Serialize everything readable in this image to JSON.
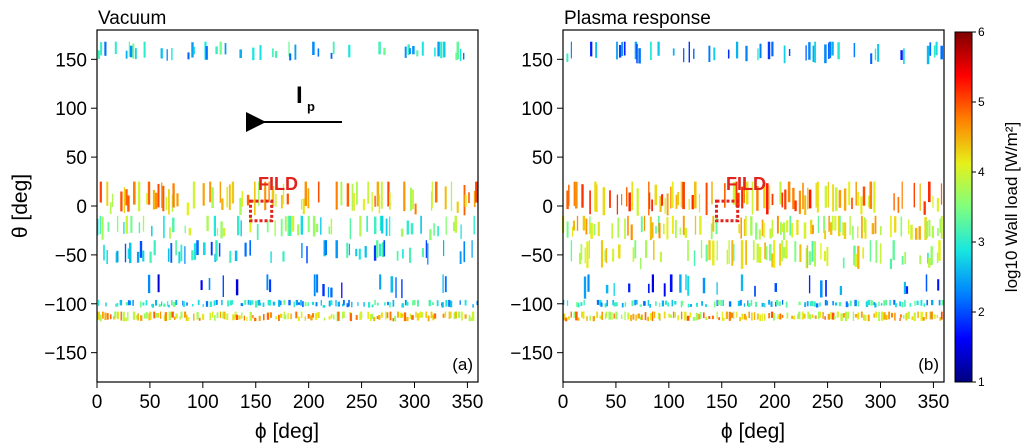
{
  "colors": {
    "fild_box": "#e0231c",
    "colormap": [
      "#00007f",
      "#0000ff",
      "#0080ff",
      "#17e6e0",
      "#7fff7f",
      "#e6f01a",
      "#ff8000",
      "#ff0000",
      "#7f0000"
    ]
  },
  "annotation": {
    "current_symbol": "I",
    "current_subscript": "p",
    "arrow_direction": "left"
  },
  "chart_data": [
    {
      "type": "heatmap",
      "title": "Vacuum",
      "panel_tag": "(a)",
      "xlabel": "ϕ [deg]",
      "ylabel": "θ [deg]",
      "xlim": [
        0,
        360
      ],
      "ylim": [
        -180,
        180
      ],
      "xticks": [
        0,
        50,
        100,
        150,
        200,
        250,
        300,
        350
      ],
      "yticks": [
        150,
        100,
        50,
        0,
        -50,
        -100,
        -150
      ],
      "grid": false,
      "annotation_label": "FILD",
      "fild_box": {
        "phi": [
          145,
          165
        ],
        "theta": [
          -15,
          5
        ]
      },
      "wall_load_bands": [
        {
          "theta": [
            148,
            168
          ],
          "level": 2.8,
          "density": 0.35
        },
        {
          "theta": [
            -10,
            25
          ],
          "level": 4.4,
          "density": 0.55
        },
        {
          "theta": [
            -35,
            -10
          ],
          "level": 3.4,
          "density": 0.45
        },
        {
          "theta": [
            -60,
            -35
          ],
          "level": 2.6,
          "density": 0.4
        },
        {
          "theta": [
            -95,
            -70
          ],
          "level": 2.0,
          "density": 0.12
        },
        {
          "theta": [
            -104,
            -96
          ],
          "level": 2.8,
          "density": 0.7
        },
        {
          "theta": [
            -118,
            -108
          ],
          "level": 4.3,
          "density": 0.9
        }
      ]
    },
    {
      "type": "heatmap",
      "title": "Plasma response",
      "panel_tag": "(b)",
      "xlabel": "ϕ [deg]",
      "ylabel": "",
      "xlim": [
        0,
        360
      ],
      "ylim": [
        -180,
        180
      ],
      "xticks": [
        0,
        50,
        100,
        150,
        200,
        250,
        300,
        350
      ],
      "yticks": [
        150,
        100,
        50,
        0,
        -50,
        -100,
        -150
      ],
      "grid": false,
      "annotation_label": "FILD",
      "fild_box": {
        "phi": [
          145,
          165
        ],
        "theta": [
          -15,
          5
        ]
      },
      "wall_load_bands": [
        {
          "theta": [
            145,
            168
          ],
          "level": 2.4,
          "density": 0.25
        },
        {
          "theta": [
            -10,
            25
          ],
          "level": 4.6,
          "density": 0.6
        },
        {
          "theta": [
            -35,
            -10
          ],
          "level": 4.0,
          "density": 0.55
        },
        {
          "theta": [
            -65,
            -35
          ],
          "level": 3.8,
          "density": 0.5
        },
        {
          "theta": [
            -95,
            -70
          ],
          "level": 2.2,
          "density": 0.15
        },
        {
          "theta": [
            -104,
            -96
          ],
          "level": 2.8,
          "density": 0.7
        },
        {
          "theta": [
            -118,
            -108
          ],
          "level": 4.3,
          "density": 0.9
        }
      ]
    }
  ],
  "colorbar": {
    "label": "log10 Wall load [W/m²]",
    "range": [
      1,
      6
    ],
    "ticks": [
      1,
      2,
      3,
      4,
      5,
      6
    ]
  }
}
